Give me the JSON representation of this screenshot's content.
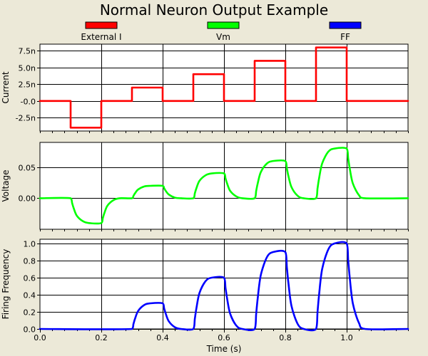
{
  "chart_data": {
    "type": "line",
    "title": "Normal Neuron Output Example",
    "xlabel": "Time (s)",
    "xlim": [
      0,
      1.2
    ],
    "x_ticks": [
      "0.0",
      "0.2",
      "0.4",
      "0.6",
      "0.8",
      "1.0"
    ],
    "grid": true,
    "legend_position": "top",
    "legend": [
      {
        "name": "External I",
        "color": "#ff0000"
      },
      {
        "name": "Vm",
        "color": "#00ff00"
      },
      {
        "name": "FF",
        "color": "#0000ff"
      }
    ],
    "panels": [
      {
        "ylabel": "Current",
        "ylim": [
          -4.5e-09,
          8.5e-09
        ],
        "y_ticks": [
          {
            "value": 7.5e-09,
            "label": "7.5n"
          },
          {
            "value": 5e-09,
            "label": "5.0n"
          },
          {
            "value": 2.5e-09,
            "label": "2.5n"
          },
          {
            "value": 0.0,
            "label": "-0.0"
          },
          {
            "value": -2.5e-09,
            "label": "-2.5n"
          }
        ],
        "series": [
          {
            "name": "External I",
            "color": "#ff0000",
            "interpolation": "step",
            "x": [
              0.0,
              0.1,
              0.2,
              0.3,
              0.4,
              0.5,
              0.6,
              0.7,
              0.8,
              0.9,
              1.0,
              1.2
            ],
            "y": [
              0,
              -4e-09,
              0,
              2e-09,
              0,
              4e-09,
              0,
              6e-09,
              0,
              8e-09,
              0,
              0
            ]
          }
        ]
      },
      {
        "ylabel": "Voltage",
        "ylim": [
          -0.05,
          0.09
        ],
        "y_ticks": [
          {
            "value": 0.05,
            "label": "0.05"
          },
          {
            "value": 0.0,
            "label": "0.00"
          }
        ],
        "series": [
          {
            "name": "Vm",
            "color": "#00ff00",
            "interpolation": "smooth",
            "x": [
              0.0,
              0.1,
              0.105,
              0.11,
              0.12,
              0.14,
              0.16,
              0.2,
              0.205,
              0.21,
              0.22,
              0.24,
              0.26,
              0.3,
              0.305,
              0.31,
              0.32,
              0.34,
              0.36,
              0.4,
              0.405,
              0.41,
              0.42,
              0.44,
              0.46,
              0.5,
              0.505,
              0.51,
              0.52,
              0.54,
              0.56,
              0.6,
              0.605,
              0.61,
              0.62,
              0.64,
              0.66,
              0.7,
              0.705,
              0.71,
              0.72,
              0.74,
              0.76,
              0.8,
              0.805,
              0.81,
              0.82,
              0.84,
              0.86,
              0.9,
              0.905,
              0.91,
              0.92,
              0.94,
              0.96,
              1.0,
              1.005,
              1.01,
              1.02,
              1.04,
              1.06,
              1.2
            ],
            "y": [
              0,
              0,
              -0.008,
              -0.016,
              -0.028,
              -0.037,
              -0.04,
              -0.04,
              -0.032,
              -0.024,
              -0.012,
              -0.003,
              0,
              0,
              0.004,
              0.008,
              0.014,
              0.019,
              0.02,
              0.02,
              0.016,
              0.012,
              0.006,
              0.001,
              0,
              0,
              0.008,
              0.016,
              0.028,
              0.037,
              0.04,
              0.04,
              0.032,
              0.024,
              0.012,
              0.003,
              0,
              0,
              0.012,
              0.024,
              0.042,
              0.056,
              0.06,
              0.06,
              0.048,
              0.036,
              0.018,
              0.004,
              0,
              0,
              0.016,
              0.032,
              0.056,
              0.075,
              0.08,
              0.08,
              0.064,
              0.048,
              0.024,
              0.005,
              0,
              0
            ]
          }
        ]
      },
      {
        "ylabel": "Firing Frequency",
        "ylim": [
          0,
          1.05
        ],
        "y_ticks": [
          {
            "value": 1.0,
            "label": "1.0"
          },
          {
            "value": 0.8,
            "label": "0.8"
          },
          {
            "value": 0.6,
            "label": "0.6"
          },
          {
            "value": 0.4,
            "label": "0.4"
          },
          {
            "value": 0.2,
            "label": "0.2"
          },
          {
            "value": 0.0,
            "label": "0.0"
          }
        ],
        "series": [
          {
            "name": "FF",
            "color": "#0000ff",
            "interpolation": "smooth",
            "x": [
              0.0,
              0.3,
              0.305,
              0.31,
              0.32,
              0.34,
              0.36,
              0.4,
              0.405,
              0.41,
              0.42,
              0.44,
              0.46,
              0.5,
              0.505,
              0.51,
              0.52,
              0.54,
              0.56,
              0.6,
              0.605,
              0.61,
              0.62,
              0.64,
              0.66,
              0.7,
              0.705,
              0.71,
              0.72,
              0.74,
              0.76,
              0.8,
              0.805,
              0.81,
              0.82,
              0.84,
              0.86,
              0.9,
              0.905,
              0.91,
              0.92,
              0.94,
              0.96,
              1.0,
              1.005,
              1.01,
              1.02,
              1.04,
              1.06,
              1.2
            ],
            "y": [
              0,
              0,
              0.06,
              0.12,
              0.21,
              0.28,
              0.3,
              0.3,
              0.24,
              0.18,
              0.09,
              0.02,
              0,
              0,
              0.12,
              0.24,
              0.42,
              0.56,
              0.6,
              0.6,
              0.48,
              0.36,
              0.18,
              0.04,
              0,
              0,
              0.18,
              0.36,
              0.63,
              0.84,
              0.9,
              0.9,
              0.72,
              0.54,
              0.27,
              0.06,
              0,
              0,
              0.2,
              0.4,
              0.7,
              0.93,
              1.0,
              1.0,
              0.8,
              0.6,
              0.3,
              0.07,
              0,
              0
            ]
          }
        ]
      }
    ]
  }
}
